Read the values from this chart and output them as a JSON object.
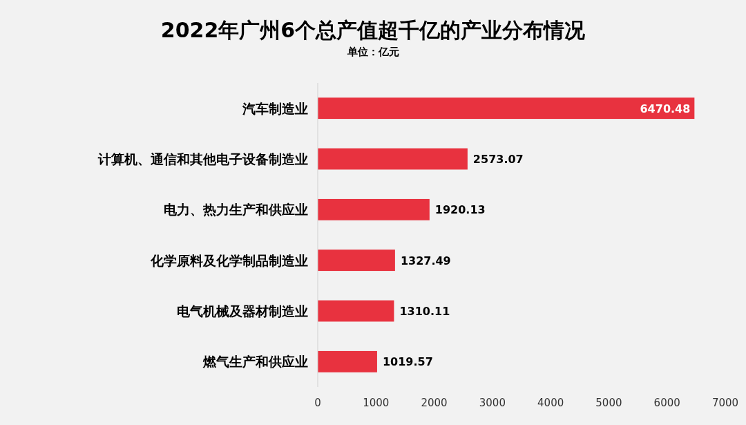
{
  "chart_data": {
    "type": "bar",
    "title": "2022年广州6个总产值超千亿的产业分布情况",
    "subtitle": "单位：亿元",
    "orientation": "horizontal",
    "categories": [
      "汽车制造业",
      "计算机、通信和其他电子设备制造业",
      "电力、热力生产和供应业",
      "化学原料及化学制品制造业",
      "电气机械及器材制造业",
      "燃气生产和供应业"
    ],
    "values": [
      6470.48,
      2573.07,
      1920.13,
      1327.49,
      1310.11,
      1019.57
    ],
    "color": "#e8323f",
    "xlim": [
      0,
      7000
    ],
    "xticks": [
      0,
      1000,
      2000,
      3000,
      4000,
      5000,
      6000,
      7000
    ],
    "data_labels": true
  }
}
